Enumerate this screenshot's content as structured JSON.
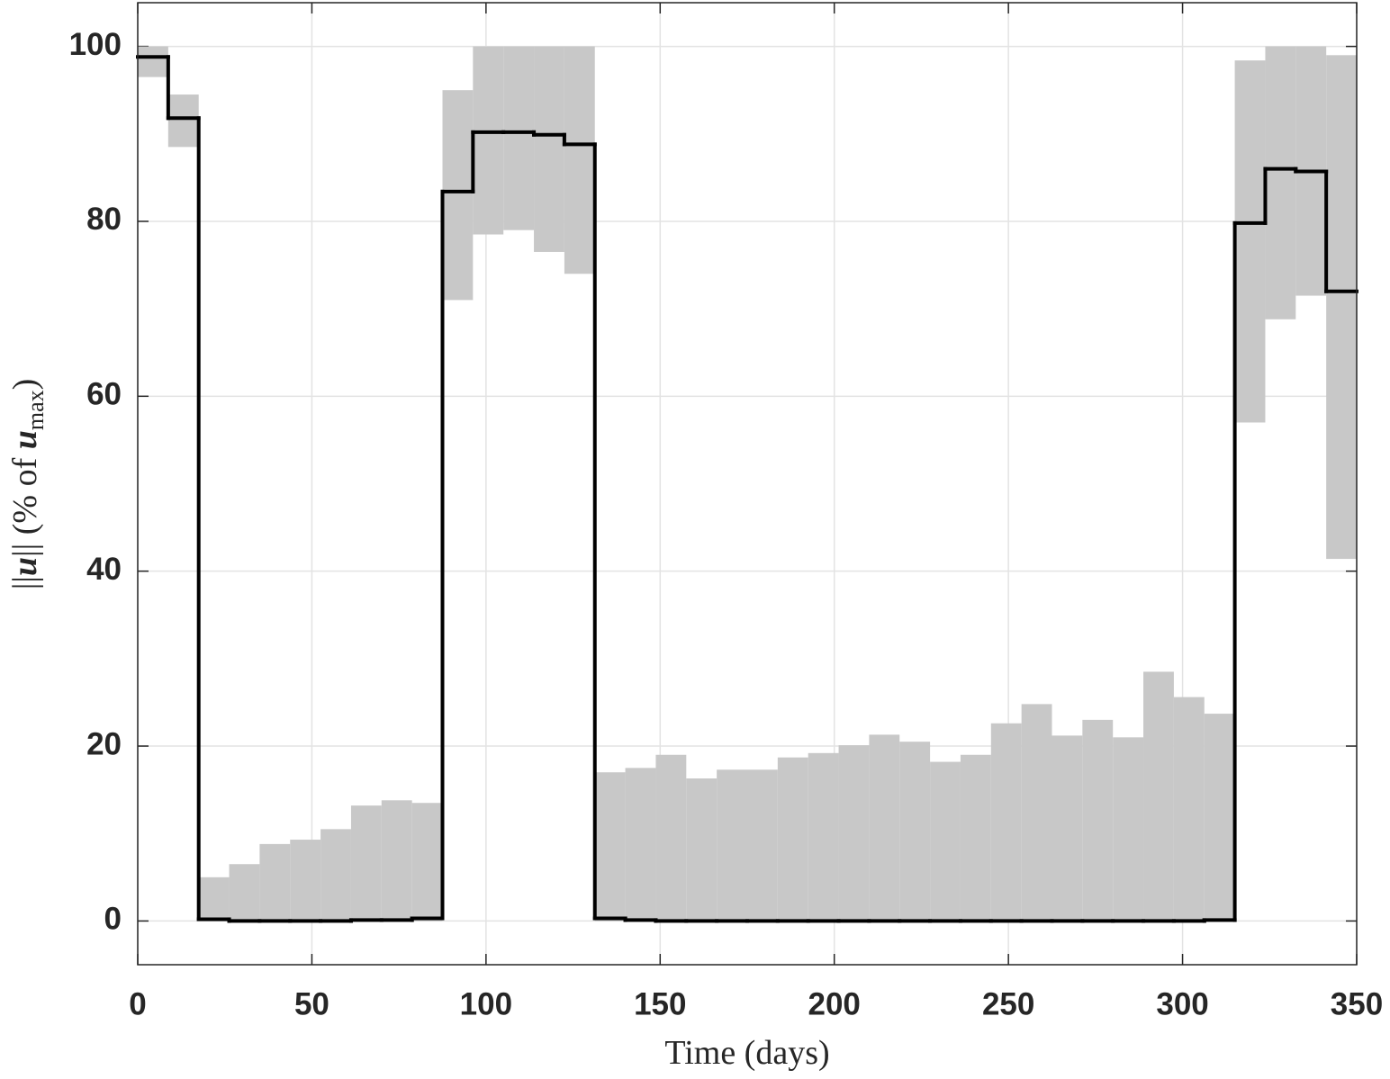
{
  "chart_data": {
    "type": "step",
    "xlabel": "Time (days)",
    "ylabel_parts": [
      "||",
      "u",
      "|| (% of ",
      "u",
      "max",
      ")"
    ],
    "x": [
      0,
      8.75,
      17.5,
      26.25,
      35,
      43.75,
      52.5,
      61.25,
      70,
      78.75,
      87.5,
      96.25,
      105,
      113.75,
      122.5,
      131.25,
      140,
      148.75,
      157.5,
      166.25,
      175,
      183.75,
      192.5,
      201.25,
      210,
      218.75,
      227.5,
      236.25,
      245,
      253.75,
      262.5,
      271.25,
      280,
      288.75,
      297.5,
      306.25,
      315,
      323.75,
      332.5,
      341.25
    ],
    "series": [
      {
        "color": "#000000",
        "values": [
          98.8,
          91.8,
          0.2,
          0,
          0,
          0,
          0,
          0.1,
          0.1,
          0.3,
          83.4,
          90.2,
          90.2,
          89.9,
          88.8,
          0.3,
          0.1,
          0,
          0,
          0,
          0,
          0,
          0,
          0,
          0,
          0,
          0,
          0,
          0,
          0,
          0,
          0,
          0,
          0,
          0,
          0.1,
          79.8,
          86,
          85.7,
          72
        ]
      }
    ],
    "band": {
      "color": "#c8c8c8",
      "lower": [
        96.5,
        88.5,
        0,
        0,
        0,
        0,
        0,
        0,
        0,
        0,
        71,
        78.5,
        79,
        76.5,
        74,
        0,
        0,
        0,
        0,
        0,
        0,
        0,
        0,
        0,
        0,
        0,
        0,
        0,
        0,
        0,
        0,
        0,
        0,
        0,
        0,
        0,
        57,
        68.8,
        71.5,
        41.4
      ],
      "upper": [
        100,
        94.5,
        5,
        6.5,
        8.8,
        9.3,
        10.5,
        13.2,
        13.8,
        13.5,
        95,
        100,
        100,
        100,
        100,
        17,
        17.5,
        19,
        16.3,
        17.3,
        17.3,
        18.7,
        19.2,
        20.1,
        21.3,
        20.5,
        18.2,
        19,
        22.6,
        24.8,
        21.2,
        23,
        21,
        28.5,
        25.6,
        23.7,
        98.4,
        100,
        100,
        99
      ]
    },
    "xlim": [
      0,
      350
    ],
    "xticks": [
      0,
      50,
      100,
      150,
      200,
      250,
      300,
      350
    ],
    "ylim": [
      -5,
      105
    ],
    "yticks": [
      0,
      20,
      40,
      60,
      80,
      100
    ],
    "grid": true
  }
}
